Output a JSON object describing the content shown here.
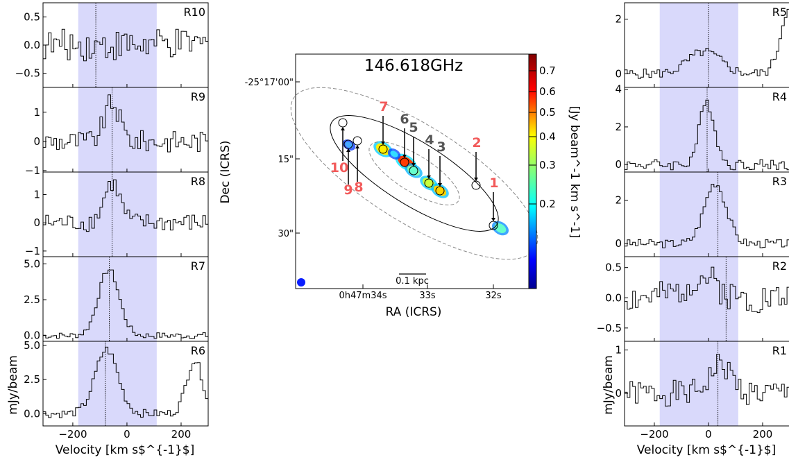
{
  "figure": {
    "left_xlabel": "Velocity [km s$^{-1}$]",
    "right_xlabel": "Velocity [km s$^{-1}$]",
    "left_ylabel": "mJy/beam",
    "right_ylabel": "mJy/beam",
    "xticks": [
      -200,
      0,
      200
    ],
    "xlim": [
      -310,
      300
    ],
    "shade_range": [
      -180,
      110
    ],
    "shade_color": "#d9d9fb"
  },
  "map": {
    "title": "146.618GHz",
    "xlabel": "RA (ICRS)",
    "ylabel": "Dec (ICRS)",
    "ra_ticks": [
      "0h47m34s",
      "33s",
      "32s"
    ],
    "dec_ticks": [
      "-25°17'00\"",
      "15\"",
      "30\""
    ],
    "scalebar_label": "0.1 kpc",
    "colorbar_label": "[Jy beam^-1 km s^-1]",
    "colorbar_ticks": [
      "0.7",
      "0.6",
      "0.5",
      "0.4",
      "0.3",
      "0.2"
    ],
    "region_labels": [
      {
        "label": "1",
        "color": "#f25a5a"
      },
      {
        "label": "2",
        "color": "#f25a5a"
      },
      {
        "label": "3",
        "color": "#555555"
      },
      {
        "label": "4",
        "color": "#555555"
      },
      {
        "label": "5",
        "color": "#555555"
      },
      {
        "label": "6",
        "color": "#555555"
      },
      {
        "label": "7",
        "color": "#f25a5a"
      },
      {
        "label": "8",
        "color": "#f25a5a"
      },
      {
        "label": "9",
        "color": "#f25a5a"
      },
      {
        "label": "10",
        "color": "#f25a5a"
      }
    ]
  },
  "chart_data": [
    {
      "type": "line",
      "name": "R10",
      "side": "left",
      "row": 0,
      "ylim": [
        -0.75,
        0.75
      ],
      "yticks": [
        0.5,
        0.0,
        -0.5
      ],
      "yticklabels": [
        "0.5",
        "0.0",
        "−0.5"
      ],
      "center": -115,
      "seed": 10,
      "noise": 0.28,
      "peaks": []
    },
    {
      "type": "line",
      "name": "R9",
      "side": "left",
      "row": 1,
      "ylim": [
        -1.05,
        1.85
      ],
      "yticks": [
        1,
        0,
        -1
      ],
      "yticklabels": [
        "1",
        "0",
        "−1"
      ],
      "center": -55,
      "seed": 9,
      "noise": 0.38,
      "peaks": [
        {
          "mu": -60,
          "sigma": 28,
          "amp": 1.3
        }
      ]
    },
    {
      "type": "line",
      "name": "R8",
      "side": "left",
      "row": 2,
      "ylim": [
        -1.2,
        1.8
      ],
      "yticks": [
        1,
        0,
        -1
      ],
      "yticklabels": [
        "1",
        "0",
        "−1"
      ],
      "center": -55,
      "seed": 8,
      "noise": 0.33,
      "peaks": [
        {
          "mu": -60,
          "sigma": 30,
          "amp": 1.4
        }
      ]
    },
    {
      "type": "line",
      "name": "R7",
      "side": "left",
      "row": 3,
      "ylim": [
        -0.4,
        5.5
      ],
      "yticks": [
        5.0,
        2.5,
        0.0
      ],
      "yticklabels": [
        "5.0",
        "2.5",
        "0.0"
      ],
      "center": -65,
      "seed": 7,
      "noise": 0.22,
      "peaks": [
        {
          "mu": -72,
          "sigma": 38,
          "amp": 4.6
        }
      ]
    },
    {
      "type": "line",
      "name": "R6",
      "side": "left",
      "row": 4,
      "ylim": [
        -0.9,
        5.3
      ],
      "yticks": [
        5.0,
        2.5,
        0.0
      ],
      "yticklabels": [
        "5.0",
        "2.5",
        "0.0"
      ],
      "center": -80,
      "seed": 6,
      "noise": 0.3,
      "peaks": [
        {
          "mu": -80,
          "sigma": 42,
          "amp": 4.7
        },
        {
          "mu": 245,
          "sigma": 30,
          "amp": 3.9
        }
      ]
    },
    {
      "type": "line",
      "name": "R5",
      "side": "right",
      "row": 0,
      "ylim": [
        -0.5,
        2.6
      ],
      "yticks": [
        2,
        0
      ],
      "yticklabels": [
        "2",
        "0"
      ],
      "center": 0,
      "seed": 5,
      "noise": 0.18,
      "peaks": [
        {
          "mu": -20,
          "sigma": 60,
          "amp": 0.8
        },
        {
          "mu": 300,
          "sigma": 35,
          "amp": 2.6
        }
      ]
    },
    {
      "type": "line",
      "name": "R4",
      "side": "right",
      "row": 1,
      "ylim": [
        -0.4,
        4.1
      ],
      "yticks": [
        4,
        2,
        0
      ],
      "yticklabels": [
        "4",
        "2",
        "0"
      ],
      "center": -5,
      "seed": 4,
      "noise": 0.3,
      "peaks": [
        {
          "mu": -10,
          "sigma": 28,
          "amp": 3.3
        }
      ]
    },
    {
      "type": "line",
      "name": "R3",
      "side": "right",
      "row": 2,
      "ylim": [
        -0.6,
        3.3
      ],
      "yticks": [
        2,
        0
      ],
      "yticklabels": [
        "2",
        "0"
      ],
      "center": 35,
      "seed": 3,
      "noise": 0.2,
      "peaks": [
        {
          "mu": 20,
          "sigma": 40,
          "amp": 2.8
        }
      ]
    },
    {
      "type": "line",
      "name": "R2",
      "side": "right",
      "row": 3,
      "ylim": [
        -0.72,
        0.68
      ],
      "yticks": [
        0.5,
        0.0,
        -0.5
      ],
      "yticklabels": [
        "0.5",
        "0.0",
        "−0.5"
      ],
      "center": 65,
      "seed": 2,
      "noise": 0.26,
      "peaks": [
        {
          "mu": -30,
          "sigma": 55,
          "amp": 0.35
        }
      ]
    },
    {
      "type": "line",
      "name": "R1",
      "side": "right",
      "row": 4,
      "ylim": [
        -0.75,
        1.2
      ],
      "yticks": [
        1,
        0
      ],
      "yticklabels": [
        "1",
        "0"
      ],
      "center": 35,
      "seed": 1,
      "noise": 0.3,
      "peaks": [
        {
          "mu": 40,
          "sigma": 40,
          "amp": 0.65
        }
      ]
    }
  ]
}
